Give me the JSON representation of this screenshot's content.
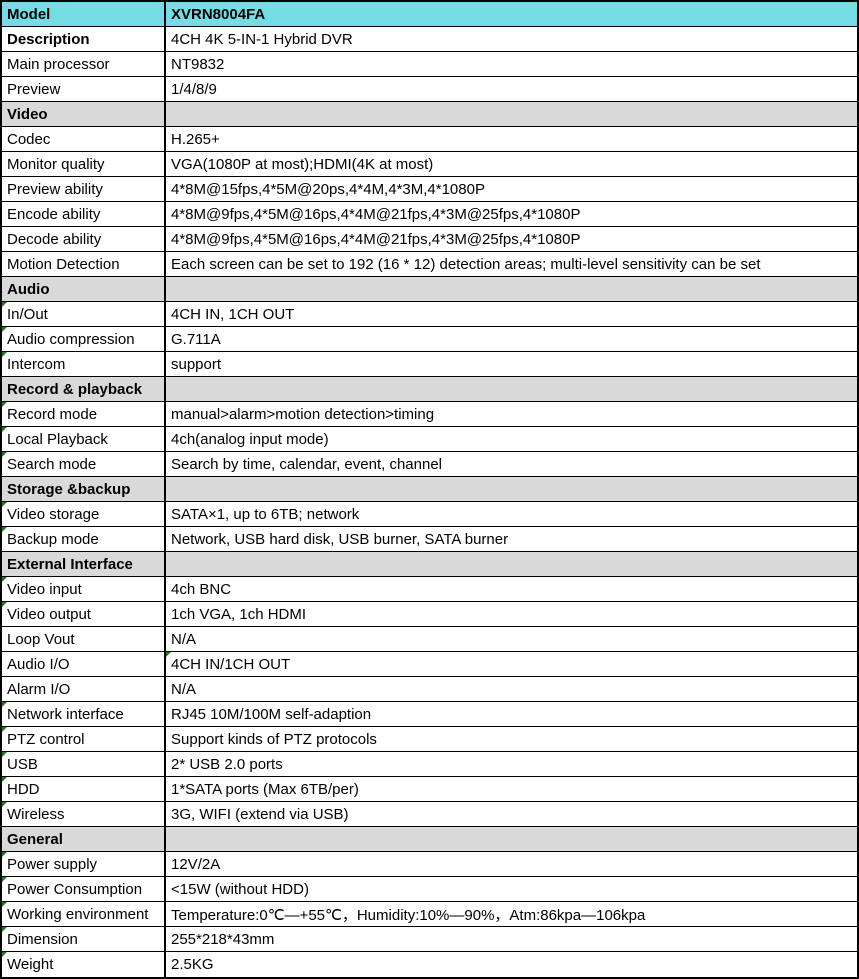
{
  "table": {
    "title": "XVRN8004FA specification sheet",
    "colors": {
      "model_row_bg": "#75DCE4",
      "section_row_bg": "#D9D9D9",
      "grid_border": "#000000",
      "error_marker_green": "#1E7B1E"
    },
    "rows": [
      {
        "type": "model",
        "label": "Model",
        "value": "XVRN8004FA"
      },
      {
        "type": "normal",
        "label": "Description",
        "label_bold": true,
        "value": "4CH 4K 5-IN-1 Hybrid DVR"
      },
      {
        "type": "normal",
        "label": "Main processor",
        "value": "NT9832"
      },
      {
        "type": "normal",
        "label": "Preview",
        "value": "1/4/8/9"
      },
      {
        "type": "section",
        "label": "Video"
      },
      {
        "type": "normal",
        "label": "Codec",
        "value": "H.265+"
      },
      {
        "type": "normal",
        "label": "Monitor quality",
        "value": "VGA(1080P at most);HDMI(4K at most)"
      },
      {
        "type": "normal",
        "label": "Preview ability",
        "value": "4*8M@15fps,4*5M@20ps,4*4M,4*3M,4*1080P"
      },
      {
        "type": "normal",
        "label": "Encode ability",
        "value": "4*8M@9fps,4*5M@16ps,4*4M@21fps,4*3M@25fps,4*1080P"
      },
      {
        "type": "normal",
        "label": "Decode ability",
        "value": "4*8M@9fps,4*5M@16ps,4*4M@21fps,4*3M@25fps,4*1080P"
      },
      {
        "type": "normal",
        "label": "Motion Detection",
        "value": "Each screen can be set to 192 (16 * 12) detection areas; multi-level sensitivity can be set"
      },
      {
        "type": "section",
        "label": "Audio"
      },
      {
        "type": "normal",
        "label": "In/Out",
        "value": "4CH IN, 1CH OUT",
        "marker": "label"
      },
      {
        "type": "normal",
        "label": "Audio compression",
        "value": "G.711A",
        "marker": "label"
      },
      {
        "type": "normal",
        "label": "Intercom",
        "value": "support",
        "marker": "label"
      },
      {
        "type": "section",
        "label": "Record & playback"
      },
      {
        "type": "normal",
        "label": "Record mode",
        "value": "manual>alarm>motion detection>timing",
        "marker": "label"
      },
      {
        "type": "normal",
        "label": "Local Playback",
        "value": "4ch(analog input mode)",
        "marker": "label"
      },
      {
        "type": "normal",
        "label": "Search mode",
        "value": "Search by time, calendar, event, channel",
        "marker": "label"
      },
      {
        "type": "section",
        "label": "Storage &backup"
      },
      {
        "type": "normal",
        "label": "Video storage",
        "value": "SATA×1, up to 6TB; network",
        "marker": "label"
      },
      {
        "type": "normal",
        "label": "Backup mode",
        "value": "Network, USB hard disk, USB burner, SATA burner",
        "marker": "label"
      },
      {
        "type": "section",
        "label": "External Interface"
      },
      {
        "type": "normal",
        "label": "Video input",
        "value": "4ch BNC",
        "marker": "label"
      },
      {
        "type": "normal",
        "label": "Video output",
        "value": "1ch VGA, 1ch HDMI",
        "marker": "label"
      },
      {
        "type": "normal",
        "label": "Loop Vout",
        "value": "N/A"
      },
      {
        "type": "normal",
        "label": "Audio I/O",
        "value": "4CH IN/1CH OUT",
        "marker": "value"
      },
      {
        "type": "normal",
        "label": "Alarm I/O",
        "value": "N/A"
      },
      {
        "type": "normal",
        "label": "Network interface",
        "value": "RJ45 10M/100M self-adaption",
        "marker": "label"
      },
      {
        "type": "normal",
        "label": "PTZ control",
        "value": "Support kinds of PTZ protocols",
        "marker": "label"
      },
      {
        "type": "normal",
        "label": "USB",
        "value": "2* USB 2.0 ports",
        "marker": "label"
      },
      {
        "type": "normal",
        "label": "HDD",
        "value": "1*SATA ports (Max 6TB/per)",
        "marker": "label"
      },
      {
        "type": "normal",
        "label": "Wireless",
        "value": "3G, WIFI (extend via USB)",
        "marker": "label"
      },
      {
        "type": "section",
        "label": "General"
      },
      {
        "type": "normal",
        "label": "Power supply",
        "value": "12V/2A",
        "marker": "label"
      },
      {
        "type": "normal",
        "label": "Power Consumption",
        "value": "<15W (without HDD)",
        "marker": "label"
      },
      {
        "type": "normal",
        "label": "Working environment",
        "value": "Temperature:0℃—+55℃，Humidity:10%—90%，Atm:86kpa—106kpa",
        "marker": "label"
      },
      {
        "type": "normal",
        "label": "Dimension",
        "value": "255*218*43mm",
        "marker": "label"
      },
      {
        "type": "normal",
        "label": "Weight",
        "value": "2.5KG",
        "marker": "label"
      }
    ]
  }
}
